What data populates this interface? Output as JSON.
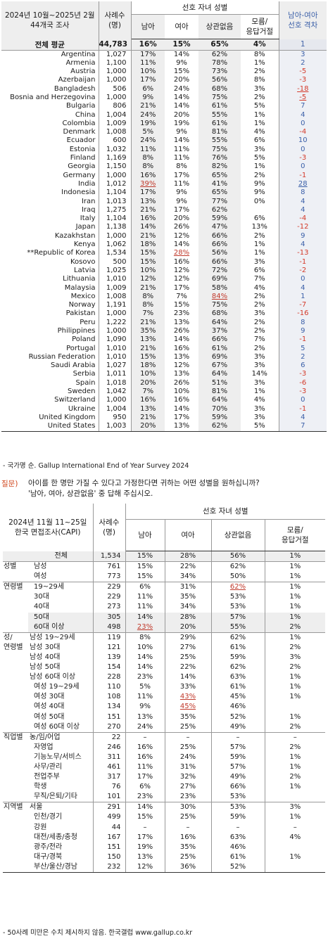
{
  "table1": {
    "header": {
      "period_line1": "2024년 10월~2025년 2월",
      "period_line2": "44개국 조사",
      "sample_line1": "사례수",
      "sample_line2": "(명)",
      "group": "선호 자녀 성별",
      "son": "남아",
      "daughter": "여아",
      "nomatter": "상관없음",
      "dk_line1": "모름/",
      "dk_line2": "응답거절",
      "gap_line1": "남아-여아",
      "gap_line2": "선호 격차"
    },
    "average": {
      "label": "전체 평균",
      "n": "44,783",
      "son": "16%",
      "daughter": "15%",
      "nomatter": "65%",
      "dk": "4%",
      "gap": "1"
    },
    "rows": [
      {
        "country": "Argentina",
        "n": "1,027",
        "son": "17%",
        "daughter": "14%",
        "nomatter": "62%",
        "dk": "8%",
        "gap": "3"
      },
      {
        "country": "Armenia",
        "n": "1,100",
        "son": "11%",
        "daughter": "9%",
        "nomatter": "78%",
        "dk": "1%",
        "gap": "2"
      },
      {
        "country": "Austria",
        "n": "1,000",
        "son": "10%",
        "daughter": "15%",
        "nomatter": "73%",
        "dk": "2%",
        "gap": "-5"
      },
      {
        "country": "Azerbaijan",
        "n": "1,000",
        "son": "17%",
        "daughter": "20%",
        "nomatter": "56%",
        "dk": "8%",
        "gap": "-3"
      },
      {
        "country": "Bangladesh",
        "n": "506",
        "son": "6%",
        "daughter": "24%",
        "nomatter": "68%",
        "dk": "3%",
        "gap": "-18"
      },
      {
        "country": "Bosnia and Herzegovina",
        "n": "1,000",
        "son": "9%",
        "daughter": "14%",
        "nomatter": "75%",
        "dk": "2%",
        "gap": "-5"
      },
      {
        "country": "Bulgaria",
        "n": "806",
        "son": "21%",
        "daughter": "14%",
        "nomatter": "61%",
        "dk": "5%",
        "gap": "7"
      },
      {
        "country": "China",
        "n": "1,004",
        "son": "24%",
        "daughter": "20%",
        "nomatter": "55%",
        "dk": "1%",
        "gap": "4"
      },
      {
        "country": "Colombia",
        "n": "1,009",
        "son": "19%",
        "daughter": "19%",
        "nomatter": "61%",
        "dk": "1%",
        "gap": "0"
      },
      {
        "country": "Denmark",
        "n": "1,008",
        "son": "5%",
        "daughter": "9%",
        "nomatter": "81%",
        "dk": "4%",
        "gap": "-4"
      },
      {
        "country": "Ecuador",
        "n": "600",
        "son": "24%",
        "daughter": "14%",
        "nomatter": "55%",
        "dk": "6%",
        "gap": "10"
      },
      {
        "country": "Estonia",
        "n": "1,032",
        "son": "11%",
        "daughter": "11%",
        "nomatter": "75%",
        "dk": "3%",
        "gap": "0"
      },
      {
        "country": "Finland",
        "n": "1,169",
        "son": "8%",
        "daughter": "11%",
        "nomatter": "76%",
        "dk": "5%",
        "gap": "-3"
      },
      {
        "country": "Georgia",
        "n": "1,150",
        "son": "8%",
        "daughter": "8%",
        "nomatter": "82%",
        "dk": "1%",
        "gap": "0"
      },
      {
        "country": "Germany",
        "n": "1,000",
        "son": "16%",
        "daughter": "17%",
        "nomatter": "65%",
        "dk": "2%",
        "gap": "-1"
      },
      {
        "country": "India",
        "n": "1,012",
        "son": "39%",
        "daughter": "11%",
        "nomatter": "41%",
        "dk": "9%",
        "gap": "28"
      },
      {
        "country": "Indonesia",
        "n": "1,104",
        "son": "17%",
        "daughter": "9%",
        "nomatter": "65%",
        "dk": "9%",
        "gap": "8"
      },
      {
        "country": "Iran",
        "n": "1,013",
        "son": "13%",
        "daughter": "9%",
        "nomatter": "77%",
        "dk": "0%",
        "gap": "4"
      },
      {
        "country": "Iraq",
        "n": "1,275",
        "son": "21%",
        "daughter": "17%",
        "nomatter": "62%",
        "dk": "",
        "gap": "4"
      },
      {
        "country": "Italy",
        "n": "1,104",
        "son": "16%",
        "daughter": "20%",
        "nomatter": "59%",
        "dk": "6%",
        "gap": "-4"
      },
      {
        "country": "Japan",
        "n": "1,138",
        "son": "14%",
        "daughter": "26%",
        "nomatter": "47%",
        "dk": "13%",
        "gap": "-12"
      },
      {
        "country": "Kazakhstan",
        "n": "1,000",
        "son": "21%",
        "daughter": "12%",
        "nomatter": "66%",
        "dk": "2%",
        "gap": "9"
      },
      {
        "country": "Kenya",
        "n": "1,062",
        "son": "18%",
        "daughter": "14%",
        "nomatter": "66%",
        "dk": "1%",
        "gap": "4"
      },
      {
        "country": "**Republic of Korea",
        "n": "1,534",
        "son": "15%",
        "daughter": "28%",
        "nomatter": "56%",
        "dk": "1%",
        "gap": "-13"
      },
      {
        "country": "Kosovo",
        "n": "500",
        "son": "15%",
        "daughter": "16%",
        "nomatter": "66%",
        "dk": "3%",
        "gap": "-1"
      },
      {
        "country": "Latvia",
        "n": "1,025",
        "son": "10%",
        "daughter": "12%",
        "nomatter": "72%",
        "dk": "6%",
        "gap": "-2"
      },
      {
        "country": "Lithuania",
        "n": "1,010",
        "son": "12%",
        "daughter": "12%",
        "nomatter": "69%",
        "dk": "7%",
        "gap": "0"
      },
      {
        "country": "Malaysia",
        "n": "1,009",
        "son": "21%",
        "daughter": "17%",
        "nomatter": "58%",
        "dk": "4%",
        "gap": "4"
      },
      {
        "country": "Mexico",
        "n": "1,008",
        "son": "8%",
        "daughter": "7%",
        "nomatter": "84%",
        "dk": "2%",
        "gap": "1"
      },
      {
        "country": "Norway",
        "n": "1,191",
        "son": "8%",
        "daughter": "15%",
        "nomatter": "75%",
        "dk": "2%",
        "gap": "-7"
      },
      {
        "country": "Pakistan",
        "n": "1,000",
        "son": "7%",
        "daughter": "23%",
        "nomatter": "68%",
        "dk": "3%",
        "gap": "-16"
      },
      {
        "country": "Peru",
        "n": "1,222",
        "son": "21%",
        "daughter": "13%",
        "nomatter": "64%",
        "dk": "2%",
        "gap": "8"
      },
      {
        "country": "Philippines",
        "n": "1,000",
        "son": "35%",
        "daughter": "26%",
        "nomatter": "37%",
        "dk": "2%",
        "gap": "9"
      },
      {
        "country": "Poland",
        "n": "1,090",
        "son": "13%",
        "daughter": "14%",
        "nomatter": "66%",
        "dk": "7%",
        "gap": "-1"
      },
      {
        "country": "Portugal",
        "n": "1,010",
        "son": "21%",
        "daughter": "16%",
        "nomatter": "61%",
        "dk": "2%",
        "gap": "5"
      },
      {
        "country": "Russian Federation",
        "n": "1,010",
        "son": "15%",
        "daughter": "13%",
        "nomatter": "69%",
        "dk": "3%",
        "gap": "2"
      },
      {
        "country": "Saudi Arabia",
        "n": "1,027",
        "son": "18%",
        "daughter": "12%",
        "nomatter": "67%",
        "dk": "3%",
        "gap": "6"
      },
      {
        "country": "Serbia",
        "n": "1,011",
        "son": "10%",
        "daughter": "13%",
        "nomatter": "64%",
        "dk": "14%",
        "gap": "-3"
      },
      {
        "country": "Spain",
        "n": "1,018",
        "son": "20%",
        "daughter": "26%",
        "nomatter": "51%",
        "dk": "3%",
        "gap": "-6"
      },
      {
        "country": "Sweden",
        "n": "1,042",
        "son": "7%",
        "daughter": "10%",
        "nomatter": "81%",
        "dk": "1%",
        "gap": "-3"
      },
      {
        "country": "Switzerland",
        "n": "1,000",
        "son": "16%",
        "daughter": "16%",
        "nomatter": "64%",
        "dk": "4%",
        "gap": "0"
      },
      {
        "country": "Ukraine",
        "n": "1,004",
        "son": "13%",
        "daughter": "14%",
        "nomatter": "70%",
        "dk": "3%",
        "gap": "-1"
      },
      {
        "country": "United Kingdom",
        "n": "950",
        "son": "21%",
        "daughter": "17%",
        "nomatter": "59%",
        "dk": "3%",
        "gap": "4"
      },
      {
        "country": "United States",
        "n": "1,003",
        "son": "20%",
        "daughter": "13%",
        "nomatter": "62%",
        "dk": "5%",
        "gap": "7"
      }
    ],
    "note": "- 국가명 순. Gallup International End of Year Survey 2024"
  },
  "question": {
    "label": "질문)",
    "line1": "아이를 한 명만 가질 수 있다고 가정한다면 귀하는 어떤 성별을 원하십니까?",
    "line2": "'남아, 여아, 상관없음' 중 답해 주십시오."
  },
  "table2": {
    "header": {
      "period_line1": "2024년 11월 11~25일",
      "period_line2": "한국 면접조사(CAPI)",
      "sample_line1": "사례수",
      "sample_line2": "(명)",
      "group": "선호 자녀 성별",
      "son": "남아",
      "daughter": "여아",
      "nomatter": "상관없음",
      "dk_line1": "모름/",
      "dk_line2": "응답거절"
    },
    "rows": [
      {
        "cat": "",
        "label": "전체",
        "n": "1,534",
        "son": "15%",
        "daughter": "28%",
        "nomatter": "56%",
        "dk": "1%"
      },
      {
        "cat": "성별",
        "label": "남성",
        "n": "761",
        "son": "15%",
        "daughter": "22%",
        "nomatter": "62%",
        "dk": "1%"
      },
      {
        "cat": "",
        "label": "여성",
        "n": "773",
        "son": "15%",
        "daughter": "34%",
        "nomatter": "50%",
        "dk": "1%"
      },
      {
        "cat": "연령별",
        "label": "19~29세",
        "n": "229",
        "son": "6%",
        "daughter": "31%",
        "nomatter": "62%",
        "dk": "1%"
      },
      {
        "cat": "",
        "label": "30대",
        "n": "229",
        "son": "11%",
        "daughter": "35%",
        "nomatter": "53%",
        "dk": "1%"
      },
      {
        "cat": "",
        "label": "40대",
        "n": "273",
        "son": "11%",
        "daughter": "34%",
        "nomatter": "53%",
        "dk": "1%"
      },
      {
        "cat": "",
        "label": "50대",
        "n": "305",
        "son": "14%",
        "daughter": "28%",
        "nomatter": "57%",
        "dk": "1%"
      },
      {
        "cat": "",
        "label": "60대 이상",
        "n": "498",
        "son": "23%",
        "daughter": "20%",
        "nomatter": "55%",
        "dk": "2%"
      },
      {
        "cat": "성/",
        "label": "남성 19~29세",
        "n": "119",
        "son": "8%",
        "daughter": "29%",
        "nomatter": "62%",
        "dk": "1%"
      },
      {
        "cat": "연령별",
        "label": "남성 30대",
        "n": "121",
        "son": "10%",
        "daughter": "27%",
        "nomatter": "61%",
        "dk": "2%"
      },
      {
        "cat": "",
        "label": "남성 40대",
        "n": "139",
        "son": "14%",
        "daughter": "25%",
        "nomatter": "59%",
        "dk": "3%"
      },
      {
        "cat": "",
        "label": "남성 50대",
        "n": "154",
        "son": "14%",
        "daughter": "22%",
        "nomatter": "62%",
        "dk": "2%"
      },
      {
        "cat": "",
        "label": "남성 60대 이상",
        "n": "228",
        "son": "23%",
        "daughter": "14%",
        "nomatter": "63%",
        "dk": "1%"
      },
      {
        "cat": "",
        "label": "여성 19~29세",
        "n": "110",
        "son": "5%",
        "daughter": "33%",
        "nomatter": "61%",
        "dk": "1%"
      },
      {
        "cat": "",
        "label": "여성 30대",
        "n": "108",
        "son": "11%",
        "daughter": "43%",
        "nomatter": "45%",
        "dk": "1%"
      },
      {
        "cat": "",
        "label": "여성 40대",
        "n": "134",
        "son": "9%",
        "daughter": "45%",
        "nomatter": "46%",
        "dk": ""
      },
      {
        "cat": "",
        "label": "여성 50대",
        "n": "151",
        "son": "13%",
        "daughter": "35%",
        "nomatter": "52%",
        "dk": "1%"
      },
      {
        "cat": "",
        "label": "여성 60대 이상",
        "n": "270",
        "son": "24%",
        "daughter": "25%",
        "nomatter": "49%",
        "dk": "2%"
      },
      {
        "cat": "직업별",
        "label": "농/임/어업",
        "n": "22",
        "son": "–",
        "daughter": "–",
        "nomatter": "–",
        "dk": "–"
      },
      {
        "cat": "",
        "label": "자영업",
        "n": "246",
        "son": "16%",
        "daughter": "25%",
        "nomatter": "57%",
        "dk": "2%"
      },
      {
        "cat": "",
        "label": "기능노무/서비스",
        "n": "311",
        "son": "16%",
        "daughter": "24%",
        "nomatter": "59%",
        "dk": "1%"
      },
      {
        "cat": "",
        "label": "사무/관리",
        "n": "461",
        "son": "11%",
        "daughter": "31%",
        "nomatter": "57%",
        "dk": "1%"
      },
      {
        "cat": "",
        "label": "전업주부",
        "n": "317",
        "son": "17%",
        "daughter": "32%",
        "nomatter": "49%",
        "dk": "2%"
      },
      {
        "cat": "",
        "label": "학생",
        "n": "76",
        "son": "6%",
        "daughter": "27%",
        "nomatter": "66%",
        "dk": "1%"
      },
      {
        "cat": "",
        "label": "무직/은퇴/기타",
        "n": "101",
        "son": "23%",
        "daughter": "23%",
        "nomatter": "53%",
        "dk": ""
      },
      {
        "cat": "지역별",
        "label": "서울",
        "n": "291",
        "son": "14%",
        "daughter": "30%",
        "nomatter": "53%",
        "dk": "3%"
      },
      {
        "cat": "",
        "label": "인천/경기",
        "n": "499",
        "son": "15%",
        "daughter": "25%",
        "nomatter": "59%",
        "dk": "1%"
      },
      {
        "cat": "",
        "label": "강원",
        "n": "44",
        "son": "–",
        "daughter": "–",
        "nomatter": "–",
        "dk": "–"
      },
      {
        "cat": "",
        "label": "대전/세종/충청",
        "n": "167",
        "son": "17%",
        "daughter": "16%",
        "nomatter": "63%",
        "dk": "4%"
      },
      {
        "cat": "",
        "label": "광주/전라",
        "n": "151",
        "son": "19%",
        "daughter": "35%",
        "nomatter": "46%",
        "dk": ""
      },
      {
        "cat": "",
        "label": "대구/경북",
        "n": "150",
        "son": "13%",
        "daughter": "25%",
        "nomatter": "61%",
        "dk": "1%"
      },
      {
        "cat": "",
        "label": "부산/울산/경남",
        "n": "232",
        "son": "12%",
        "daughter": "36%",
        "nomatter": "52%",
        "dk": ""
      }
    ],
    "note": "- 50사례 미만은 수치 제시하지 않음. 한국갤럽 www.gallup.co.kr"
  }
}
